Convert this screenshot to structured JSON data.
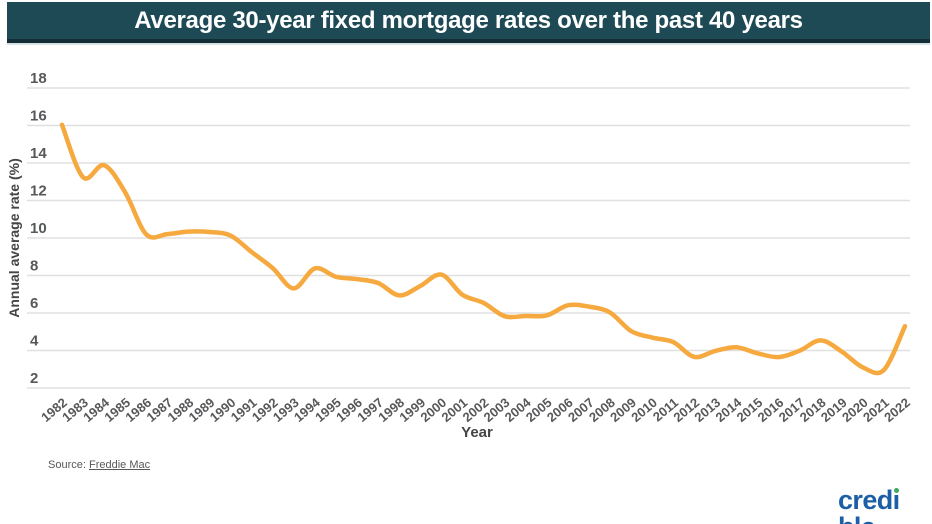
{
  "header": {
    "title": "Average 30-year fixed mortgage rates over the past 40 years",
    "bg_color": "#1E4A56",
    "border_color": "#132E37",
    "text_color": "#FFFFFF"
  },
  "chart_data": {
    "type": "line",
    "title": "Average 30-year fixed mortgage rates over the past 40 years",
    "series_name": "30-year fixed mortgage rate",
    "x": [
      1982,
      1983,
      1984,
      1985,
      1986,
      1987,
      1988,
      1989,
      1990,
      1991,
      1992,
      1993,
      1994,
      1995,
      1996,
      1997,
      1998,
      1999,
      2000,
      2001,
      2002,
      2003,
      2004,
      2005,
      2006,
      2007,
      2008,
      2009,
      2010,
      2011,
      2012,
      2013,
      2014,
      2015,
      2016,
      2017,
      2018,
      2019,
      2020,
      2021,
      2022
    ],
    "values": [
      16.04,
      13.24,
      13.88,
      12.43,
      10.19,
      10.21,
      10.34,
      10.32,
      10.13,
      9.25,
      8.39,
      7.31,
      8.38,
      7.93,
      7.81,
      7.6,
      6.94,
      7.44,
      8.05,
      6.97,
      6.54,
      5.83,
      5.84,
      5.87,
      6.41,
      6.34,
      6.03,
      5.04,
      4.69,
      4.45,
      3.66,
      3.98,
      4.17,
      3.85,
      3.65,
      3.99,
      4.54,
      3.94,
      3.1,
      2.96,
      5.3
    ],
    "xlabel": "Year",
    "ylabel": "Annual average rate (%)",
    "ylim": [
      2,
      18
    ],
    "yticks": [
      2,
      4,
      6,
      8,
      10,
      12,
      14,
      16,
      18
    ],
    "grid": "horizontal",
    "legend": "none",
    "line_color": "#F5A93E",
    "gridline_color": "#E0E0E0",
    "tick_color": "#57585A"
  },
  "footer": {
    "source_prefix": "Source: ",
    "source_link": "Freddie Mac",
    "logo_label": "credible",
    "logo_color": "#1D5FA6",
    "logo_dot_color": "#3FA865"
  }
}
